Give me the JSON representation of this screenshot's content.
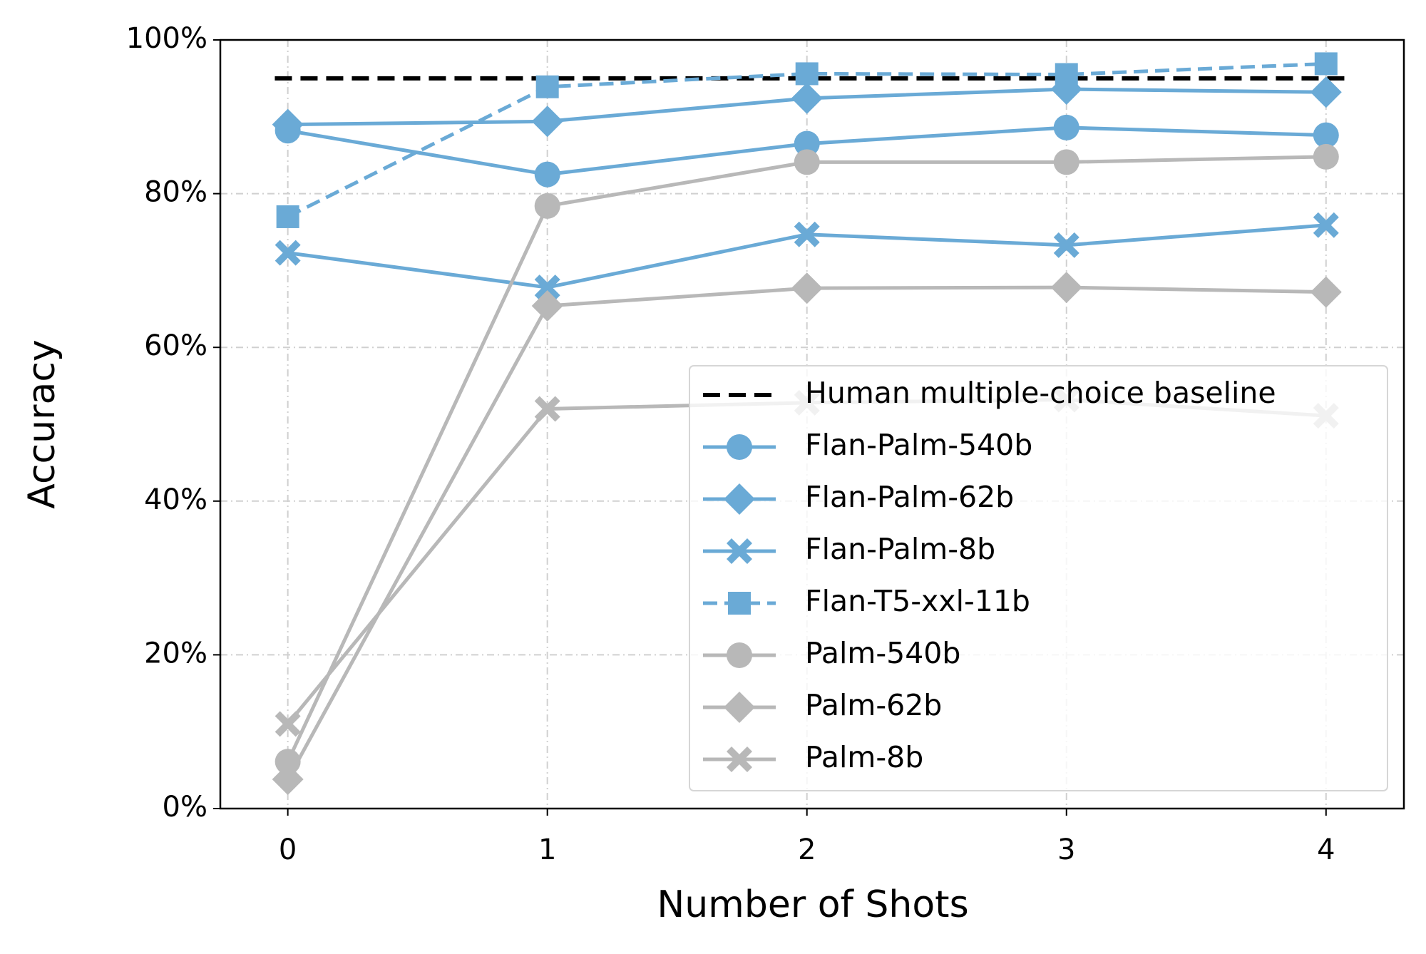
{
  "chart_data": {
    "type": "line",
    "xlabel": "Number of Shots",
    "ylabel": "Accuracy",
    "x": [
      0,
      1,
      2,
      3,
      4
    ],
    "xlim": [
      -0.26,
      4.3
    ],
    "xticks": [
      0,
      1,
      2,
      3,
      4
    ],
    "ylim": [
      0,
      100
    ],
    "yticks": [
      {
        "value": 0,
        "label": "0%"
      },
      {
        "value": 20,
        "label": "20%"
      },
      {
        "value": 40,
        "label": "40%"
      },
      {
        "value": 60,
        "label": "60%"
      },
      {
        "value": 80,
        "label": "80%"
      },
      {
        "value": 100,
        "label": "100%"
      }
    ],
    "grid": true,
    "legend": "lower right",
    "baseline": {
      "name": "Human multiple-choice baseline",
      "value": 95,
      "color": "#000000"
    },
    "series": [
      {
        "name": "Flan-Palm-540b",
        "color": "#6aaad6",
        "marker": "circle",
        "linestyle": "solid",
        "values": [
          88.2,
          82.5,
          86.5,
          88.6,
          87.6
        ]
      },
      {
        "name": "Flan-Palm-62b",
        "color": "#6aaad6",
        "marker": "diamond",
        "linestyle": "solid",
        "values": [
          89.0,
          89.4,
          92.4,
          93.6,
          93.2
        ]
      },
      {
        "name": "Flan-Palm-8b",
        "color": "#6aaad6",
        "marker": "x",
        "linestyle": "solid",
        "values": [
          72.3,
          67.8,
          74.7,
          73.3,
          75.9
        ]
      },
      {
        "name": "Flan-T5-xxl-11b",
        "color": "#6aaad6",
        "marker": "square",
        "linestyle": "dashed",
        "values": [
          77.0,
          93.9,
          95.6,
          95.5,
          96.9
        ]
      },
      {
        "name": "Palm-540b",
        "color": "#b8b8b8",
        "marker": "circle",
        "linestyle": "solid",
        "values": [
          6.1,
          78.4,
          84.1,
          84.1,
          84.8
        ]
      },
      {
        "name": "Palm-62b",
        "color": "#b8b8b8",
        "marker": "diamond",
        "linestyle": "solid",
        "values": [
          3.8,
          65.4,
          67.7,
          67.8,
          67.2
        ]
      },
      {
        "name": "Palm-8b",
        "color": "#b8b8b8",
        "marker": "x",
        "linestyle": "solid",
        "values": [
          11.0,
          52.0,
          52.8,
          53.2,
          51.1
        ]
      }
    ]
  }
}
